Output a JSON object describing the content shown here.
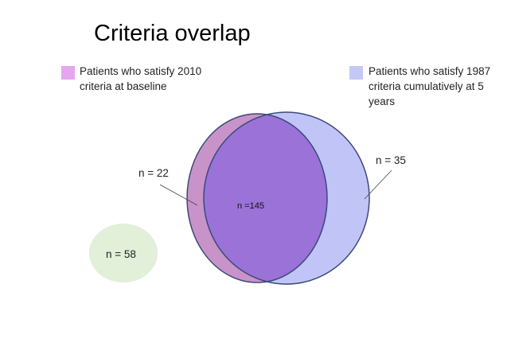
{
  "title": "Criteria overlap",
  "legend": [
    {
      "id": "2010",
      "text": "Patients who satisfy 2010 criteria at baseline",
      "color": "#e6a6f0"
    },
    {
      "id": "1987",
      "text": "Patients who satisfy 1987 criteria cumulatively at 5 years",
      "color": "#c3c8f7"
    }
  ],
  "regions": {
    "only_2010": {
      "label": "n = 22",
      "color": "#c893c9"
    },
    "only_1987": {
      "label": "n = 35",
      "color": "#c0c4f6"
    },
    "both": {
      "label": "n =145",
      "color": "#9a72d8"
    },
    "neither": {
      "label": "n = 58",
      "color": "#e2efd9"
    }
  },
  "colors": {
    "outline": "#3b4a78"
  }
}
